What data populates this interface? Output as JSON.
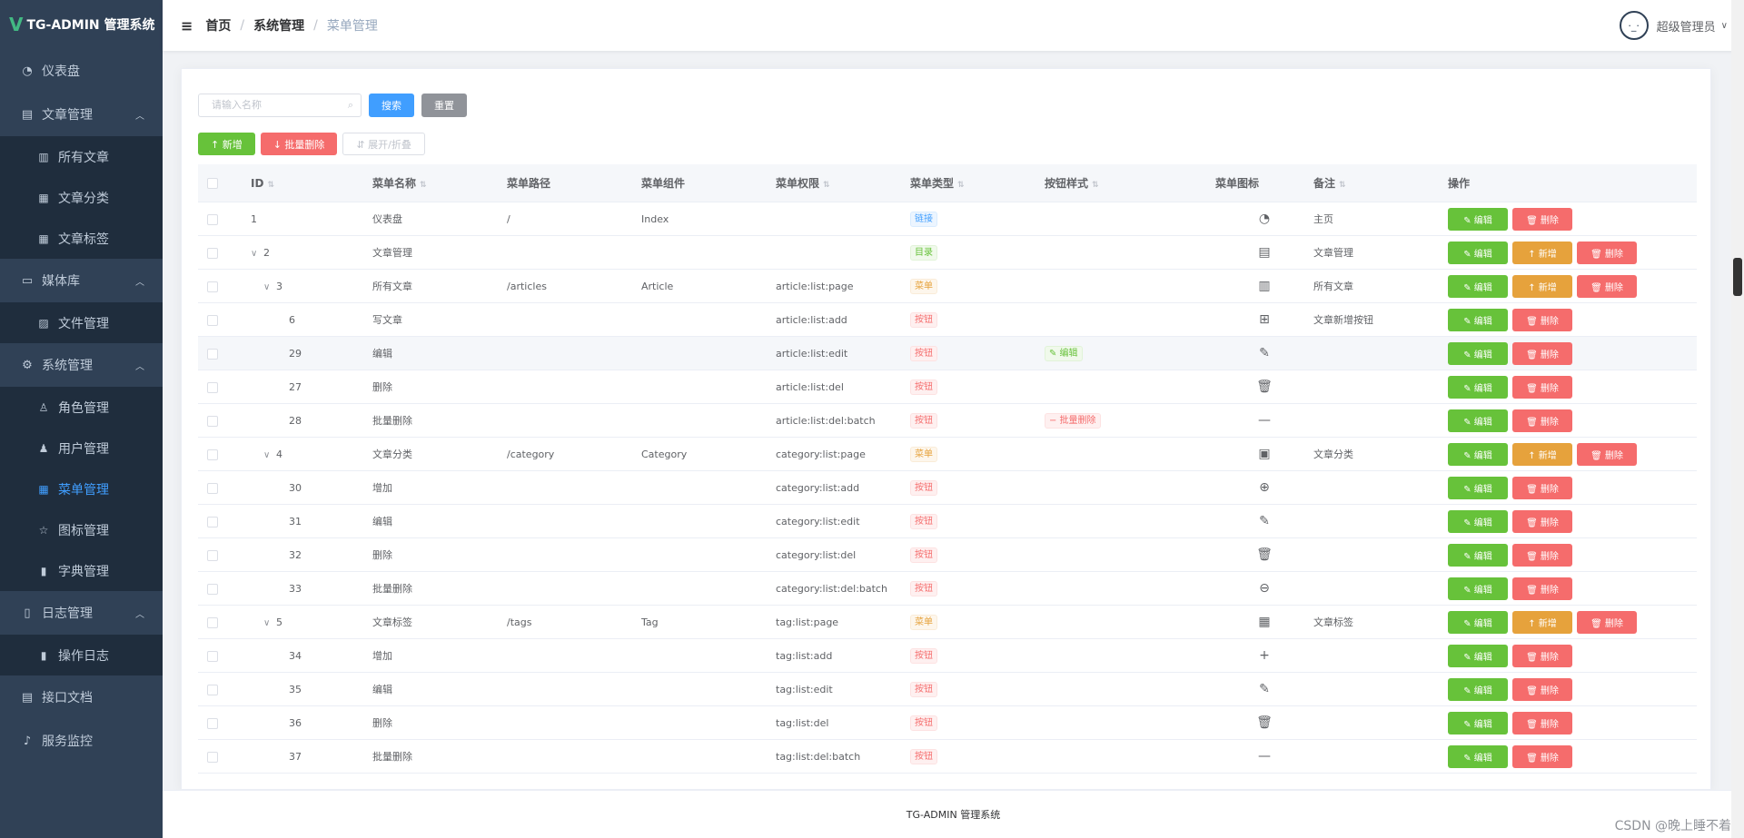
{
  "app": {
    "logo_mark": "V",
    "title": "TG-ADMIN 管理系统"
  },
  "sidebar": {
    "items": [
      {
        "label": "仪表盘",
        "icon": "dashboard-icon",
        "glyph": "◔",
        "type": "item"
      },
      {
        "label": "文章管理",
        "icon": "document-icon",
        "glyph": "▤",
        "type": "group",
        "arrow": "︿"
      },
      {
        "label": "所有文章",
        "icon": "book-icon",
        "glyph": "▥",
        "type": "sub"
      },
      {
        "label": "文章分类",
        "icon": "clipboard-icon",
        "glyph": "▦",
        "type": "sub"
      },
      {
        "label": "文章标签",
        "icon": "grid-icon",
        "glyph": "▦",
        "type": "sub"
      },
      {
        "label": "媒体库",
        "icon": "folder-icon",
        "glyph": "▭",
        "type": "group",
        "arrow": "︿"
      },
      {
        "label": "文件管理",
        "icon": "image-icon",
        "glyph": "▨",
        "type": "sub"
      },
      {
        "label": "系统管理",
        "icon": "gear-icon",
        "glyph": "⚙",
        "type": "group",
        "arrow": "︿"
      },
      {
        "label": "角色管理",
        "icon": "user-outline-icon",
        "glyph": "♙",
        "type": "sub"
      },
      {
        "label": "用户管理",
        "icon": "user-icon",
        "glyph": "♟",
        "type": "sub"
      },
      {
        "label": "菜单管理",
        "icon": "menu-icon",
        "glyph": "▦",
        "type": "sub",
        "active": true
      },
      {
        "label": "图标管理",
        "icon": "star-icon",
        "glyph": "☆",
        "type": "sub"
      },
      {
        "label": "字典管理",
        "icon": "chart-icon",
        "glyph": "▮",
        "type": "sub"
      },
      {
        "label": "日志管理",
        "icon": "log-icon",
        "glyph": "▯",
        "type": "group",
        "arrow": "︿"
      },
      {
        "label": "操作日志",
        "icon": "bar-chart-icon",
        "glyph": "▮",
        "type": "sub"
      },
      {
        "label": "接口文档",
        "icon": "api-doc-icon",
        "glyph": "▤",
        "type": "item"
      },
      {
        "label": "服务监控",
        "icon": "bell-icon",
        "glyph": "♪",
        "type": "item"
      }
    ]
  },
  "header": {
    "hamburger": "≡",
    "breadcrumb": [
      "首页",
      "系统管理",
      "菜单管理"
    ],
    "separator": "/",
    "username": "超级管理员",
    "avatar_face": "·_·",
    "caret": "∨"
  },
  "search": {
    "placeholder": "请输入名称",
    "search_icon": "⌕",
    "search_label": "搜索",
    "reset_label": "重置"
  },
  "toolbar": {
    "add_label": "↑ 新增",
    "batch_delete_label": "↓ 批量删除",
    "expand_label": "⇵ 展开/折叠"
  },
  "table": {
    "headers": {
      "id": "ID",
      "name": "菜单名称",
      "path": "菜单路径",
      "component": "菜单组件",
      "perm": "菜单权限",
      "type": "菜单类型",
      "btn_style": "按钮样式",
      "icon": "菜单图标",
      "note": "备注",
      "op": "操作"
    },
    "sort_glyph": "⇅",
    "op_labels": {
      "edit": "✎ 编辑",
      "add": "↑ 新增",
      "del": "🗑 删除"
    },
    "rows": [
      {
        "id": "1",
        "indent": 0,
        "expand": "",
        "name": "仪表盘",
        "path": "/",
        "component": "Index",
        "perm": "",
        "type": "链接",
        "type_class": "tag-link",
        "btn_style": "",
        "bs_class": "",
        "icon": "◔",
        "icon_name": "dashboard-icon",
        "note": "主页",
        "has_add": false
      },
      {
        "id": "2",
        "indent": 1,
        "expand": "∨",
        "name": "文章管理",
        "path": "",
        "component": "",
        "perm": "",
        "type": "目录",
        "type_class": "tag-dir",
        "btn_style": "",
        "bs_class": "",
        "icon": "▤",
        "icon_name": "document-icon",
        "note": "文章管理",
        "has_add": true
      },
      {
        "id": "3",
        "indent": 2,
        "expand": "∨",
        "name": "所有文章",
        "path": "/articles",
        "component": "Article",
        "perm": "article:list:page",
        "type": "菜单",
        "type_class": "tag-menu",
        "btn_style": "",
        "bs_class": "",
        "icon": "▥",
        "icon_name": "book-icon",
        "note": "所有文章",
        "has_add": true
      },
      {
        "id": "6",
        "indent": 3,
        "expand": "",
        "name": "写文章",
        "path": "",
        "component": "",
        "perm": "article:list:add",
        "type": "按钮",
        "type_class": "tag-btn",
        "btn_style": "",
        "bs_class": "",
        "icon": "⊞",
        "icon_name": "document-add-icon",
        "note": "文章新增按钮",
        "has_add": false
      },
      {
        "id": "29",
        "indent": 3,
        "expand": "",
        "name": "编辑",
        "path": "",
        "component": "",
        "perm": "article:list:edit",
        "type": "按钮",
        "type_class": "tag-btn",
        "btn_style": "✎ 编辑",
        "bs_class": "tag-dir",
        "icon": "✎",
        "icon_name": "edit-icon",
        "note": "",
        "has_add": false,
        "hl": true
      },
      {
        "id": "27",
        "indent": 3,
        "expand": "",
        "name": "删除",
        "path": "",
        "component": "",
        "perm": "article:list:del",
        "type": "按钮",
        "type_class": "tag-btn",
        "btn_style": "",
        "bs_class": "",
        "icon": "🗑",
        "icon_name": "delete-icon",
        "note": "",
        "has_add": false
      },
      {
        "id": "28",
        "indent": 3,
        "expand": "",
        "name": "批量删除",
        "path": "",
        "component": "",
        "perm": "article:list:del:batch",
        "type": "按钮",
        "type_class": "tag-btn",
        "btn_style": "− 批量删除",
        "bs_class": "tag-btn",
        "icon": "—",
        "icon_name": "minus-icon",
        "note": "",
        "has_add": false
      },
      {
        "id": "4",
        "indent": 2,
        "expand": "∨",
        "name": "文章分类",
        "path": "/category",
        "component": "Category",
        "perm": "category:list:page",
        "type": "菜单",
        "type_class": "tag-menu",
        "btn_style": "",
        "bs_class": "",
        "icon": "▣",
        "icon_name": "clipboard-icon",
        "note": "文章分类",
        "has_add": true
      },
      {
        "id": "30",
        "indent": 3,
        "expand": "",
        "name": "增加",
        "path": "",
        "component": "",
        "perm": "category:list:add",
        "type": "按钮",
        "type_class": "tag-btn",
        "btn_style": "",
        "bs_class": "",
        "icon": "⊕",
        "icon_name": "plus-circle-icon",
        "note": "",
        "has_add": false
      },
      {
        "id": "31",
        "indent": 3,
        "expand": "",
        "name": "编辑",
        "path": "",
        "component": "",
        "perm": "category:list:edit",
        "type": "按钮",
        "type_class": "tag-btn",
        "btn_style": "",
        "bs_class": "",
        "icon": "✎",
        "icon_name": "edit-icon",
        "note": "",
        "has_add": false
      },
      {
        "id": "32",
        "indent": 3,
        "expand": "",
        "name": "删除",
        "path": "",
        "component": "",
        "perm": "category:list:del",
        "type": "按钮",
        "type_class": "tag-btn",
        "btn_style": "",
        "bs_class": "",
        "icon": "🗑",
        "icon_name": "delete-icon",
        "note": "",
        "has_add": false
      },
      {
        "id": "33",
        "indent": 3,
        "expand": "",
        "name": "批量删除",
        "path": "",
        "component": "",
        "perm": "category:list:del:batch",
        "type": "按钮",
        "type_class": "tag-btn",
        "btn_style": "",
        "bs_class": "",
        "icon": "⊖",
        "icon_name": "minus-circle-icon",
        "note": "",
        "has_add": false
      },
      {
        "id": "5",
        "indent": 2,
        "expand": "∨",
        "name": "文章标签",
        "path": "/tags",
        "component": "Tag",
        "perm": "tag:list:page",
        "type": "菜单",
        "type_class": "tag-menu",
        "btn_style": "",
        "bs_class": "",
        "icon": "▦",
        "icon_name": "grid-icon",
        "note": "文章标签",
        "has_add": true
      },
      {
        "id": "34",
        "indent": 3,
        "expand": "",
        "name": "增加",
        "path": "",
        "component": "",
        "perm": "tag:list:add",
        "type": "按钮",
        "type_class": "tag-btn",
        "btn_style": "",
        "bs_class": "",
        "icon": "+",
        "icon_name": "plus-icon",
        "note": "",
        "has_add": false
      },
      {
        "id": "35",
        "indent": 3,
        "expand": "",
        "name": "编辑",
        "path": "",
        "component": "",
        "perm": "tag:list:edit",
        "type": "按钮",
        "type_class": "tag-btn",
        "btn_style": "",
        "bs_class": "",
        "icon": "✎",
        "icon_name": "edit-icon",
        "note": "",
        "has_add": false
      },
      {
        "id": "36",
        "indent": 3,
        "expand": "",
        "name": "删除",
        "path": "",
        "component": "",
        "perm": "tag:list:del",
        "type": "按钮",
        "type_class": "tag-btn",
        "btn_style": "",
        "bs_class": "",
        "icon": "🗑",
        "icon_name": "delete-icon",
        "note": "",
        "has_add": false
      },
      {
        "id": "37",
        "indent": 3,
        "expand": "",
        "name": "批量删除",
        "path": "",
        "component": "",
        "perm": "tag:list:del:batch",
        "type": "按钮",
        "type_class": "tag-btn",
        "btn_style": "",
        "bs_class": "",
        "icon": "—",
        "icon_name": "minus-icon",
        "note": "",
        "has_add": false
      }
    ]
  },
  "footer": {
    "text": "TG-ADMIN 管理系统"
  },
  "watermark": "CSDN @晚上睡不着"
}
